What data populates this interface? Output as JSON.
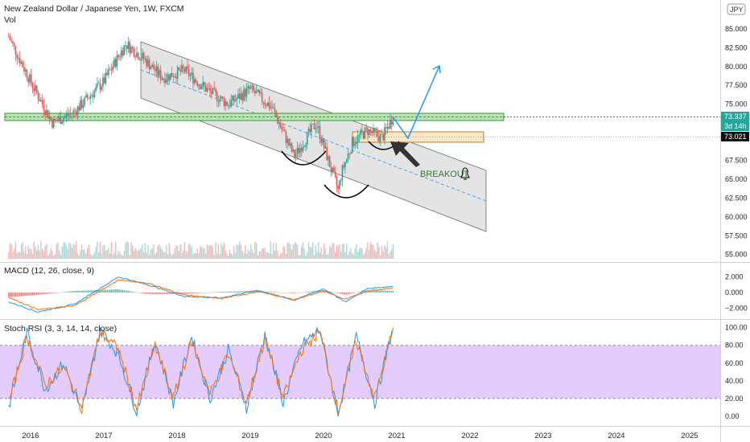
{
  "header": {
    "title": "New Zealand Dollar / Japanese Yen, 1W, FXCM",
    "volume_label": "Vol",
    "currency_badge": "JPY"
  },
  "price_axis": {
    "ticks": [
      "85.000",
      "82.500",
      "80.000",
      "77.500",
      "75.000",
      "67.500",
      "65.000",
      "62.500",
      "60.000",
      "57.500",
      "55.000"
    ],
    "last_price": "73.337",
    "countdown": "3d 14h",
    "level_price": "73.021"
  },
  "macd": {
    "label": "MACD (12, 26, close, 9)",
    "ticks": [
      "2.000",
      "0.000",
      "−2.000"
    ]
  },
  "stoch": {
    "label": "Stoch RSI (3, 3, 14, 14, close)",
    "ticks": [
      "100.00",
      "80.00",
      "60.00",
      "40.00",
      "20.00",
      "0.00"
    ]
  },
  "time_axis": {
    "ticks": [
      "2016",
      "2017",
      "2018",
      "2019",
      "2020",
      "2021",
      "2022",
      "2023",
      "2024",
      "2025"
    ]
  },
  "annotations": {
    "breakout": "BREAKOUT"
  },
  "colors": {
    "up": "#26a69a",
    "down": "#ef5350",
    "macd_line": "#2196f3",
    "signal_line": "#ff6d00",
    "k_line": "#2196f3",
    "d_line": "#ff6d00",
    "band_fill": "#e1c8fc",
    "zone_green": "#b7e4b0",
    "zone_orange": "#fbe8c8",
    "projection": "#2196f3"
  },
  "chart_data": [
    {
      "type": "candlestick",
      "title": "New Zealand Dollar / Japanese Yen, 1W, FXCM",
      "x": [
        2015.7,
        2016.0,
        2016.3,
        2016.6,
        2017.0,
        2017.3,
        2017.55,
        2017.8,
        2018.1,
        2018.4,
        2018.7,
        2019.0,
        2019.3,
        2019.6,
        2019.9,
        2020.2,
        2020.25,
        2020.4,
        2020.6,
        2020.8,
        2020.95
      ],
      "close": [
        84.0,
        78.0,
        72.5,
        74.0,
        78.0,
        83.0,
        81.0,
        78.5,
        79.5,
        77.0,
        75.0,
        77.0,
        74.5,
        68.0,
        72.5,
        63.5,
        66.0,
        70.0,
        71.5,
        70.5,
        73.34
      ],
      "ylim": [
        54,
        86.5
      ],
      "projection_target": 80.0
    },
    {
      "type": "line",
      "title": "MACD (12, 26, close, 9)",
      "x": [
        2015.7,
        2016.1,
        2016.6,
        2017.2,
        2017.6,
        2018.1,
        2018.6,
        2019.1,
        2019.6,
        2020.0,
        2020.3,
        2020.6,
        2020.95
      ],
      "series": [
        {
          "name": "MACD",
          "values": [
            -1.2,
            -2.5,
            -1.5,
            2.0,
            1.0,
            -0.5,
            -0.7,
            0.3,
            -1.0,
            0.5,
            -1.2,
            0.5,
            0.8
          ]
        },
        {
          "name": "Signal",
          "values": [
            -0.6,
            -2.2,
            -1.7,
            1.6,
            1.2,
            -0.3,
            -0.8,
            0.1,
            -0.9,
            0.2,
            -0.9,
            0.2,
            0.6
          ]
        }
      ],
      "ylim": [
        -3.2,
        3.5
      ]
    },
    {
      "type": "line",
      "title": "Stoch RSI (3, 3, 14, 14, close)",
      "x": [
        2015.7,
        2015.95,
        2016.2,
        2016.45,
        2016.7,
        2016.95,
        2017.2,
        2017.45,
        2017.7,
        2017.95,
        2018.2,
        2018.45,
        2018.7,
        2018.95,
        2019.2,
        2019.45,
        2019.7,
        2019.95,
        2020.2,
        2020.45,
        2020.7,
        2020.95
      ],
      "series": [
        {
          "name": "K",
          "values": [
            10,
            95,
            30,
            60,
            5,
            98,
            70,
            5,
            85,
            15,
            90,
            20,
            75,
            10,
            92,
            15,
            80,
            98,
            3,
            90,
            15,
            100
          ]
        },
        {
          "name": "D",
          "values": [
            15,
            90,
            35,
            55,
            10,
            95,
            75,
            8,
            80,
            20,
            85,
            25,
            70,
            15,
            88,
            20,
            75,
            95,
            6,
            85,
            20,
            98
          ]
        }
      ],
      "ylim": [
        -10,
        106
      ],
      "band": [
        20,
        80
      ]
    }
  ]
}
